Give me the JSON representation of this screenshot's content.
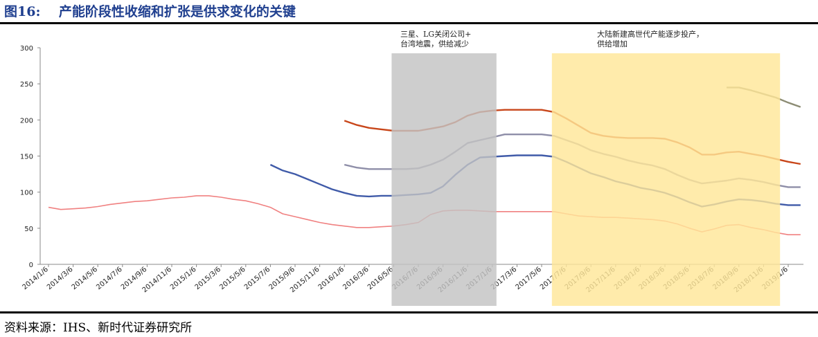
{
  "title": "图16:    产能阶段性收缩和扩张是供求变化的关键",
  "source": "资料来源：IHS、新时代证券研究所",
  "chart_data": {
    "type": "line",
    "title": "",
    "xlabel": "",
    "ylabel": "",
    "ylim": [
      0,
      300
    ],
    "yticks": [
      "0",
      "50",
      "100",
      "150",
      "200",
      "250",
      "300"
    ],
    "grid": false,
    "legend": "none",
    "frequency": "monthly",
    "xticks": [
      "2014/1/6",
      "2014/3/6",
      "2014/5/6",
      "2014/7/6",
      "2014/9/6",
      "2014/11/6",
      "2015/1/6",
      "2015/3/6",
      "2015/5/6",
      "2015/7/6",
      "2015/9/6",
      "2015/11/6",
      "2016/1/6",
      "2016/3/6",
      "2016/5/6",
      "2016/7/6",
      "2016/9/6",
      "2016/11/6",
      "2017/1/6",
      "2017/3/6",
      "2017/5/6",
      "2017/7/6",
      "2017/9/6",
      "2017/11/6",
      "2018/1/6",
      "2018/3/6",
      "2018/5/6",
      "2018/7/6",
      "2018/9/6",
      "2018/11/6",
      "2019/1/6"
    ],
    "series": [
      {
        "color": "#f08080",
        "start": "2014/1",
        "values": [
          79,
          76,
          77,
          78,
          80,
          83,
          85,
          87,
          88,
          90,
          92,
          93,
          95,
          95,
          93,
          90,
          88,
          84,
          79,
          70,
          66,
          62,
          58,
          55,
          53,
          51,
          51,
          52,
          53,
          55,
          58,
          69,
          74,
          75,
          75,
          74,
          73,
          73,
          73,
          73,
          73,
          73,
          70,
          67,
          66,
          65,
          65,
          64,
          63,
          62,
          60,
          56,
          50,
          45,
          49,
          54,
          55,
          51,
          48,
          44,
          41,
          41
        ]
      },
      {
        "color": "#3f5aa8",
        "start": "2015/7",
        "values": [
          138,
          130,
          125,
          118,
          111,
          104,
          99,
          95,
          94,
          95,
          95,
          96,
          97,
          99,
          108,
          124,
          138,
          148,
          149,
          150,
          151,
          151,
          151,
          149,
          142,
          134,
          126,
          121,
          115,
          111,
          106,
          103,
          99,
          93,
          86,
          80,
          83,
          87,
          90,
          89,
          87,
          84,
          82,
          82
        ]
      },
      {
        "color": "#8e8ea8",
        "start": "2016/1",
        "values": [
          138,
          134,
          132,
          132,
          132,
          132,
          133,
          138,
          145,
          156,
          168,
          172,
          176,
          180,
          180,
          180,
          180,
          178,
          172,
          166,
          158,
          153,
          149,
          144,
          140,
          137,
          132,
          124,
          117,
          112,
          114,
          116,
          119,
          117,
          114,
          110,
          107,
          107
        ]
      },
      {
        "color": "#c8461a",
        "start": "2016/1",
        "values": [
          199,
          193,
          189,
          187,
          185,
          185,
          185,
          188,
          191,
          197,
          206,
          211,
          213,
          214,
          214,
          214,
          214,
          211,
          202,
          192,
          182,
          178,
          176,
          175,
          175,
          175,
          174,
          169,
          162,
          152,
          152,
          155,
          156,
          153,
          150,
          146,
          142,
          139
        ]
      },
      {
        "color": "#8c8c74",
        "start": "2018/8",
        "values": [
          245,
          245,
          241,
          236,
          231,
          224,
          218
        ]
      }
    ],
    "bands": [
      {
        "from": "2016/5",
        "to": "2017/1",
        "color": "#c3c3c3",
        "label": "三星、LG关闭公司+\n台湾地震，供给减少"
      },
      {
        "from": "2017/6",
        "to": "2018/12",
        "color": "#ffe699",
        "label": "大陆新建高世代产能逐步投产，\n供给增加"
      }
    ]
  }
}
